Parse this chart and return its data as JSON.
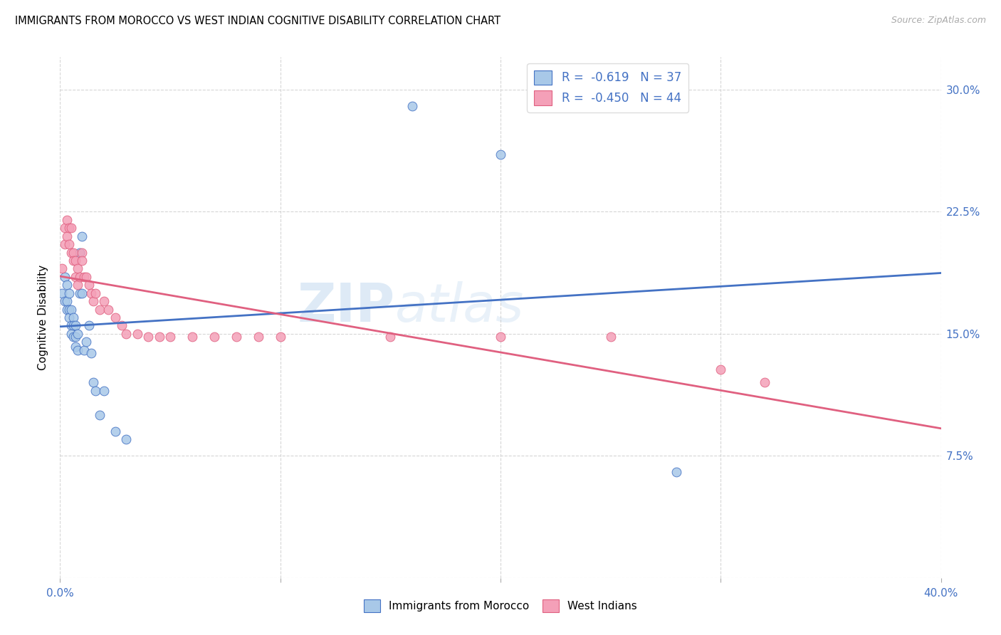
{
  "title": "IMMIGRANTS FROM MOROCCO VS WEST INDIAN COGNITIVE DISABILITY CORRELATION CHART",
  "source": "Source: ZipAtlas.com",
  "ylabel": "Cognitive Disability",
  "yticks": [
    0.0,
    0.075,
    0.15,
    0.225,
    0.3
  ],
  "ytick_labels": [
    "",
    "7.5%",
    "15.0%",
    "22.5%",
    "30.0%"
  ],
  "xlim": [
    0.0,
    0.4
  ],
  "ylim": [
    0.0,
    0.32
  ],
  "legend_r1": "R =  -0.619",
  "legend_n1": "N = 37",
  "legend_r2": "R =  -0.450",
  "legend_n2": "N = 44",
  "series1_label": "Immigrants from Morocco",
  "series2_label": "West Indians",
  "color1": "#a8c8e8",
  "color2": "#f4a0b8",
  "line1_color": "#4472c4",
  "line2_color": "#e06080",
  "axis_color": "#4472c4",
  "watermark_zip": "ZIP",
  "watermark_atlas": "atlas",
  "morocco_x": [
    0.001,
    0.002,
    0.002,
    0.003,
    0.003,
    0.003,
    0.004,
    0.004,
    0.004,
    0.005,
    0.005,
    0.005,
    0.006,
    0.006,
    0.006,
    0.007,
    0.007,
    0.007,
    0.008,
    0.008,
    0.009,
    0.009,
    0.01,
    0.01,
    0.011,
    0.012,
    0.013,
    0.014,
    0.015,
    0.016,
    0.018,
    0.02,
    0.025,
    0.03,
    0.16,
    0.2,
    0.28
  ],
  "morocco_y": [
    0.175,
    0.185,
    0.17,
    0.18,
    0.17,
    0.165,
    0.175,
    0.165,
    0.16,
    0.165,
    0.155,
    0.15,
    0.16,
    0.155,
    0.148,
    0.155,
    0.148,
    0.142,
    0.15,
    0.14,
    0.175,
    0.2,
    0.21,
    0.175,
    0.14,
    0.145,
    0.155,
    0.138,
    0.12,
    0.115,
    0.1,
    0.115,
    0.09,
    0.085,
    0.29,
    0.26,
    0.065
  ],
  "westindian_x": [
    0.001,
    0.002,
    0.002,
    0.003,
    0.003,
    0.004,
    0.004,
    0.005,
    0.005,
    0.006,
    0.006,
    0.007,
    0.007,
    0.008,
    0.008,
    0.009,
    0.01,
    0.01,
    0.011,
    0.012,
    0.013,
    0.014,
    0.015,
    0.016,
    0.018,
    0.02,
    0.022,
    0.025,
    0.028,
    0.03,
    0.035,
    0.04,
    0.045,
    0.05,
    0.06,
    0.07,
    0.08,
    0.09,
    0.1,
    0.15,
    0.2,
    0.25,
    0.3,
    0.32
  ],
  "westindian_y": [
    0.19,
    0.215,
    0.205,
    0.22,
    0.21,
    0.215,
    0.205,
    0.215,
    0.2,
    0.2,
    0.195,
    0.195,
    0.185,
    0.19,
    0.18,
    0.185,
    0.2,
    0.195,
    0.185,
    0.185,
    0.18,
    0.175,
    0.17,
    0.175,
    0.165,
    0.17,
    0.165,
    0.16,
    0.155,
    0.15,
    0.15,
    0.148,
    0.148,
    0.148,
    0.148,
    0.148,
    0.148,
    0.148,
    0.148,
    0.148,
    0.148,
    0.148,
    0.128,
    0.12
  ]
}
